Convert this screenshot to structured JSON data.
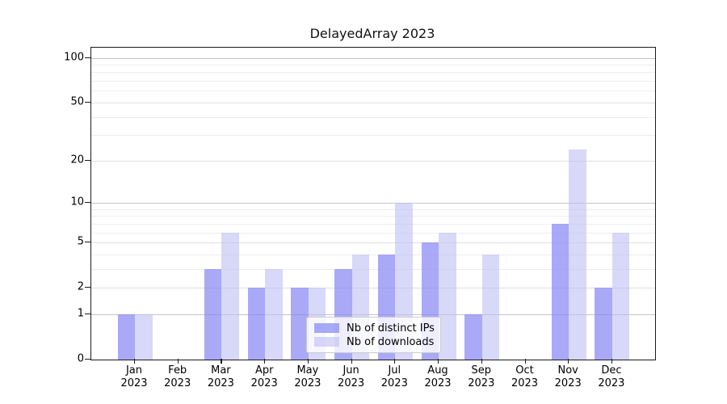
{
  "title": "DelayedArray 2023",
  "chart_data": {
    "type": "bar",
    "title": "DelayedArray 2023",
    "categories": [
      "Jan",
      "Feb",
      "Mar",
      "Apr",
      "May",
      "Jun",
      "Jul",
      "Aug",
      "Sep",
      "Oct",
      "Nov",
      "Dec"
    ],
    "year": "2023",
    "series": [
      {
        "name": "Nb of distinct IPs",
        "color": "#8c8cf5bf",
        "values": [
          1,
          0,
          3,
          2,
          2,
          3,
          4,
          5,
          1,
          0,
          7,
          2
        ]
      },
      {
        "name": "Nb of downloads",
        "color": "#bebef599",
        "values": [
          1,
          0,
          6,
          3,
          2,
          4,
          10,
          6,
          4,
          0,
          24,
          6
        ]
      }
    ],
    "xlabel": "",
    "ylabel": "",
    "y_scale": "log10(1+value)",
    "ylim": [
      0,
      117
    ],
    "y_ticks": [
      0,
      1,
      2,
      5,
      10,
      20,
      50,
      100
    ],
    "y_gridlines_major": [
      1,
      10,
      100
    ],
    "y_gridlines_mid": [
      2,
      5,
      20,
      50
    ],
    "y_gridlines_minor": [
      3,
      4,
      6,
      7,
      8,
      9,
      30,
      40,
      60,
      70,
      80,
      90
    ],
    "legend_position": "lower center",
    "grid": "horizontal"
  }
}
